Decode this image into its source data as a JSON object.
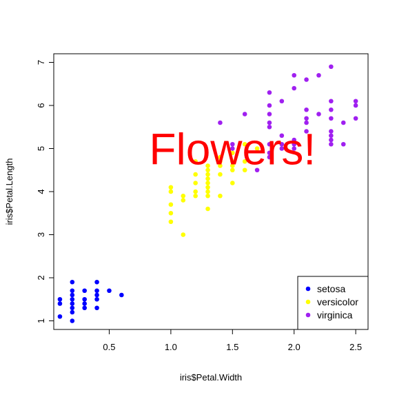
{
  "chart_data": {
    "type": "scatter",
    "title": "",
    "xlabel": "iris$Petal.Width",
    "ylabel": "iris$Petal.Length",
    "xlim": [
      0.05,
      2.6
    ],
    "ylim": [
      0.8,
      7.2
    ],
    "xticks": [
      {
        "value": 0.5,
        "label": "0.5"
      },
      {
        "value": 1.0,
        "label": "1.0"
      },
      {
        "value": 1.5,
        "label": "1.5"
      },
      {
        "value": 2.0,
        "label": "2.0"
      },
      {
        "value": 2.5,
        "label": "2.5"
      }
    ],
    "yticks": [
      {
        "value": 1,
        "label": "1"
      },
      {
        "value": 2,
        "label": "2"
      },
      {
        "value": 3,
        "label": "3"
      },
      {
        "value": 4,
        "label": "4"
      },
      {
        "value": 5,
        "label": "5"
      },
      {
        "value": 6,
        "label": "6"
      },
      {
        "value": 7,
        "label": "7"
      }
    ],
    "grid": false,
    "legend": {
      "placement": "bottom-right",
      "entries": [
        {
          "label": "setosa",
          "color": "#0000ff"
        },
        {
          "label": "versicolor",
          "color": "#ffff00"
        },
        {
          "label": "virginica",
          "color": "#a020f0"
        }
      ]
    },
    "annotation": {
      "text": "Flowers!",
      "color": "#ff0000",
      "x": 1.5,
      "y": 5.0
    },
    "series": [
      {
        "name": "setosa",
        "color": "#0000ff",
        "points": [
          [
            0.1,
            1.1
          ],
          [
            0.1,
            1.4
          ],
          [
            0.1,
            1.5
          ],
          [
            0.2,
            1.0
          ],
          [
            0.2,
            1.2
          ],
          [
            0.2,
            1.3
          ],
          [
            0.2,
            1.4
          ],
          [
            0.2,
            1.5
          ],
          [
            0.2,
            1.6
          ],
          [
            0.2,
            1.7
          ],
          [
            0.2,
            1.9
          ],
          [
            0.3,
            1.3
          ],
          [
            0.3,
            1.4
          ],
          [
            0.3,
            1.5
          ],
          [
            0.3,
            1.7
          ],
          [
            0.4,
            1.3
          ],
          [
            0.4,
            1.5
          ],
          [
            0.4,
            1.6
          ],
          [
            0.4,
            1.7
          ],
          [
            0.4,
            1.9
          ],
          [
            0.5,
            1.7
          ],
          [
            0.6,
            1.6
          ]
        ]
      },
      {
        "name": "versicolor",
        "color": "#ffff00",
        "points": [
          [
            1.0,
            3.3
          ],
          [
            1.0,
            3.5
          ],
          [
            1.0,
            3.7
          ],
          [
            1.0,
            4.0
          ],
          [
            1.0,
            4.1
          ],
          [
            1.1,
            3.0
          ],
          [
            1.1,
            3.8
          ],
          [
            1.1,
            3.9
          ],
          [
            1.2,
            3.9
          ],
          [
            1.2,
            4.0
          ],
          [
            1.2,
            4.2
          ],
          [
            1.2,
            4.4
          ],
          [
            1.2,
            4.7
          ],
          [
            1.3,
            3.6
          ],
          [
            1.3,
            3.9
          ],
          [
            1.3,
            4.0
          ],
          [
            1.3,
            4.1
          ],
          [
            1.3,
            4.2
          ],
          [
            1.3,
            4.3
          ],
          [
            1.3,
            4.4
          ],
          [
            1.3,
            4.5
          ],
          [
            1.3,
            4.6
          ],
          [
            1.4,
            3.9
          ],
          [
            1.4,
            4.4
          ],
          [
            1.4,
            4.6
          ],
          [
            1.4,
            4.7
          ],
          [
            1.4,
            4.8
          ],
          [
            1.5,
            4.2
          ],
          [
            1.5,
            4.5
          ],
          [
            1.5,
            4.6
          ],
          [
            1.5,
            4.7
          ],
          [
            1.5,
            4.9
          ],
          [
            1.6,
            4.5
          ],
          [
            1.6,
            4.7
          ],
          [
            1.6,
            5.1
          ],
          [
            1.7,
            5.0
          ],
          [
            1.8,
            4.8
          ]
        ]
      },
      {
        "name": "virginica",
        "color": "#a020f0",
        "points": [
          [
            1.4,
            5.6
          ],
          [
            1.5,
            5.0
          ],
          [
            1.5,
            5.1
          ],
          [
            1.6,
            5.8
          ],
          [
            1.7,
            4.5
          ],
          [
            1.8,
            4.8
          ],
          [
            1.8,
            4.9
          ],
          [
            1.8,
            5.1
          ],
          [
            1.8,
            5.5
          ],
          [
            1.8,
            5.6
          ],
          [
            1.8,
            5.8
          ],
          [
            1.8,
            6.0
          ],
          [
            1.8,
            6.3
          ],
          [
            1.9,
            5.0
          ],
          [
            1.9,
            5.1
          ],
          [
            1.9,
            5.3
          ],
          [
            1.9,
            6.1
          ],
          [
            2.0,
            5.0
          ],
          [
            2.0,
            5.1
          ],
          [
            2.0,
            5.2
          ],
          [
            2.0,
            6.4
          ],
          [
            2.0,
            6.7
          ],
          [
            2.1,
            5.4
          ],
          [
            2.1,
            5.6
          ],
          [
            2.1,
            5.7
          ],
          [
            2.1,
            5.9
          ],
          [
            2.1,
            6.6
          ],
          [
            2.2,
            5.8
          ],
          [
            2.2,
            6.7
          ],
          [
            2.3,
            5.1
          ],
          [
            2.3,
            5.2
          ],
          [
            2.3,
            5.3
          ],
          [
            2.3,
            5.4
          ],
          [
            2.3,
            5.7
          ],
          [
            2.3,
            5.9
          ],
          [
            2.3,
            6.1
          ],
          [
            2.3,
            6.9
          ],
          [
            2.4,
            5.1
          ],
          [
            2.4,
            5.6
          ],
          [
            2.5,
            5.7
          ],
          [
            2.5,
            6.0
          ],
          [
            2.5,
            6.1
          ]
        ]
      }
    ]
  }
}
